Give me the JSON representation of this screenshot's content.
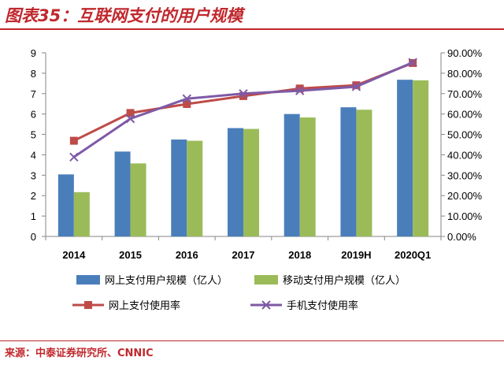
{
  "title": "图表35：互联网支付的用户规模",
  "source": "来源：中泰证券研究所、CNNIC",
  "colors": {
    "title": "#c0282d",
    "bar1": "#4a7ebb",
    "bar2": "#9bbb59",
    "line1": "#be4b48",
    "line2": "#7e5aa6"
  },
  "chart_data": {
    "type": "bar+line",
    "categories": [
      "2014",
      "2015",
      "2016",
      "2017",
      "2018",
      "2019H",
      "2020Q1"
    ],
    "bar_series": [
      {
        "name": "网上支付用户规模（亿人）",
        "values": [
          3.04,
          4.16,
          4.75,
          5.31,
          6.0,
          6.33,
          7.68
        ]
      },
      {
        "name": "移动支付用户规模（亿人）",
        "values": [
          2.17,
          3.58,
          4.69,
          5.27,
          5.83,
          6.21,
          7.65
        ]
      }
    ],
    "line_series": [
      {
        "name": "网上支付使用率",
        "values": [
          46.9,
          60.5,
          64.9,
          68.8,
          72.5,
          74.1,
          85.0
        ]
      },
      {
        "name": "手机支付使用率",
        "values": [
          38.9,
          57.7,
          67.5,
          70.0,
          71.4,
          73.4,
          85.3
        ]
      }
    ],
    "y_left": {
      "min": 0,
      "max": 9,
      "ticks": [
        "0",
        "1",
        "2",
        "3",
        "4",
        "5",
        "6",
        "7",
        "8",
        "9"
      ]
    },
    "y_right": {
      "min": 0,
      "max": 90,
      "ticks": [
        "0.00%",
        "10.00%",
        "20.00%",
        "30.00%",
        "40.00%",
        "50.00%",
        "60.00%",
        "70.00%",
        "80.00%",
        "90.00%"
      ]
    },
    "legend_position": "bottom",
    "grid": false
  }
}
